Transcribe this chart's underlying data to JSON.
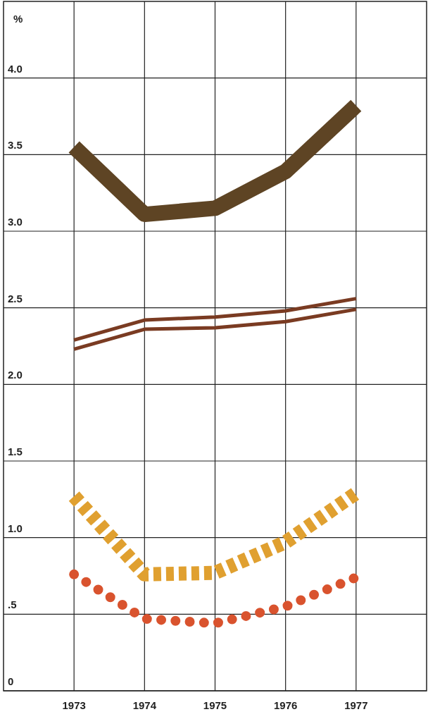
{
  "chart_data": {
    "type": "line",
    "ylabel": "%",
    "x": [
      1973,
      1974,
      1975,
      1976,
      1977
    ],
    "xlim": [
      1972,
      1978
    ],
    "xticks": [
      1973,
      1974,
      1975,
      1976,
      1977
    ],
    "ylim": [
      0,
      4.5
    ],
    "yticks": [
      {
        "value": 0,
        "label": "0"
      },
      {
        "value": 0.5,
        "label": ".5"
      },
      {
        "value": 1,
        "label": "1.0"
      },
      {
        "value": 1.5,
        "label": "1.5"
      },
      {
        "value": 2,
        "label": "2.0"
      },
      {
        "value": 2.5,
        "label": "2.5"
      },
      {
        "value": 3,
        "label": "3.0"
      },
      {
        "value": 3.5,
        "label": "3.5"
      },
      {
        "value": 4,
        "label": "4.0"
      }
    ],
    "grid": true,
    "marker": "none",
    "series": [
      {
        "color": "#5e4424",
        "values": [
          3.55,
          3.11,
          3.15,
          3.39,
          3.82
        ],
        "line_style": "solid"
      },
      {
        "color": "#7a3b22",
        "values": [
          2.29,
          2.42,
          2.44,
          2.48,
          2.56
        ],
        "line_style": "solid"
      },
      {
        "color": "#7a3b22",
        "values": [
          2.23,
          2.36,
          2.37,
          2.41,
          2.49
        ],
        "line_style": "solid"
      },
      {
        "color": "#e0a030",
        "values": [
          1.27,
          0.76,
          0.77,
          0.97,
          1.29
        ],
        "line_style": "dashed"
      },
      {
        "color": "#d9532e",
        "values": [
          0.76,
          0.47,
          0.44,
          0.55,
          0.74
        ],
        "line_style": "dotted"
      }
    ]
  }
}
